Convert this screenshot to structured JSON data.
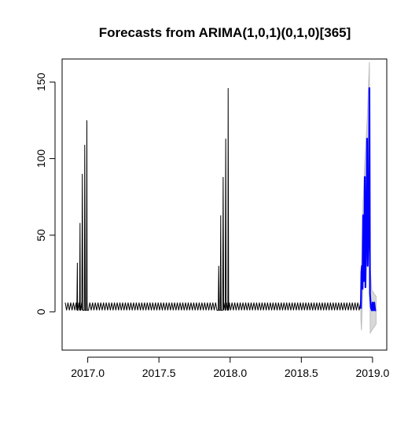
{
  "chart_data": {
    "type": "line",
    "title": "Forecasts from ARIMA(1,0,1)(0,1,0)[365]",
    "xlabel": "",
    "ylabel": "",
    "xlim": [
      2016.82,
      2019.1
    ],
    "ylim": [
      -25,
      165
    ],
    "x_ticks": [
      2017.0,
      2017.5,
      2018.0,
      2018.5,
      2019.0
    ],
    "x_tick_labels": [
      "2017.0",
      "2017.5",
      "2018.0",
      "2018.5",
      "2019.0"
    ],
    "y_ticks": [
      0,
      50,
      100,
      150
    ],
    "y_tick_labels": [
      "0",
      "50",
      "100",
      "150"
    ],
    "grid": false,
    "series": [
      {
        "role": "observed",
        "color": "#000000",
        "x_start": 2016.842,
        "x_end": 2018.918,
        "baseline_low": 1,
        "baseline_high": 6,
        "baseline_cycle_years": 0.0192,
        "holiday_peaks": [
          {
            "x": 2016.927,
            "y": 32
          },
          {
            "x": 2016.946,
            "y": 58
          },
          {
            "x": 2016.962,
            "y": 90
          },
          {
            "x": 2016.979,
            "y": 109
          },
          {
            "x": 2016.994,
            "y": 125
          },
          {
            "x": 2017.92,
            "y": 30
          },
          {
            "x": 2017.934,
            "y": 63
          },
          {
            "x": 2017.951,
            "y": 88
          },
          {
            "x": 2017.969,
            "y": 113
          },
          {
            "x": 2017.986,
            "y": 146
          }
        ]
      },
      {
        "role": "forecast",
        "color": "#0000ff",
        "x_start": 2018.918,
        "x_end": 2019.025,
        "points": [
          [
            2018.918,
            2
          ],
          [
            2018.922,
            26
          ],
          [
            2018.926,
            30
          ],
          [
            2018.93,
            15
          ],
          [
            2018.934,
            63
          ],
          [
            2018.938,
            20
          ],
          [
            2018.942,
            34
          ],
          [
            2018.946,
            88
          ],
          [
            2018.95,
            16
          ],
          [
            2018.954,
            42
          ],
          [
            2018.958,
            68
          ],
          [
            2018.962,
            113
          ],
          [
            2018.966,
            30
          ],
          [
            2018.97,
            47
          ],
          [
            2018.974,
            60
          ],
          [
            2018.978,
            146
          ],
          [
            2018.982,
            12
          ],
          [
            2018.988,
            3
          ],
          [
            2018.995,
            1
          ],
          [
            2019.0,
            6
          ],
          [
            2019.006,
            1
          ],
          [
            2019.012,
            6
          ],
          [
            2019.018,
            1
          ],
          [
            2019.025,
            1
          ]
        ]
      },
      {
        "role": "prediction-interval",
        "color": "#bebebe",
        "x_start": 2018.918,
        "x_end": 2019.025,
        "upper": [
          [
            2018.918,
            8
          ],
          [
            2018.926,
            44
          ],
          [
            2018.934,
            72
          ],
          [
            2018.946,
            98
          ],
          [
            2018.962,
            124
          ],
          [
            2018.978,
            163
          ],
          [
            2018.984,
            28
          ],
          [
            2018.995,
            14
          ],
          [
            2019.01,
            12
          ],
          [
            2019.025,
            10
          ]
        ],
        "lower": [
          [
            2018.918,
            -4
          ],
          [
            2018.922,
            -12
          ],
          [
            2018.934,
            20
          ],
          [
            2018.946,
            58
          ],
          [
            2018.962,
            75
          ],
          [
            2018.978,
            108
          ],
          [
            2018.984,
            -14
          ],
          [
            2018.995,
            -12
          ],
          [
            2019.01,
            -10
          ],
          [
            2019.025,
            -8
          ]
        ]
      }
    ]
  }
}
